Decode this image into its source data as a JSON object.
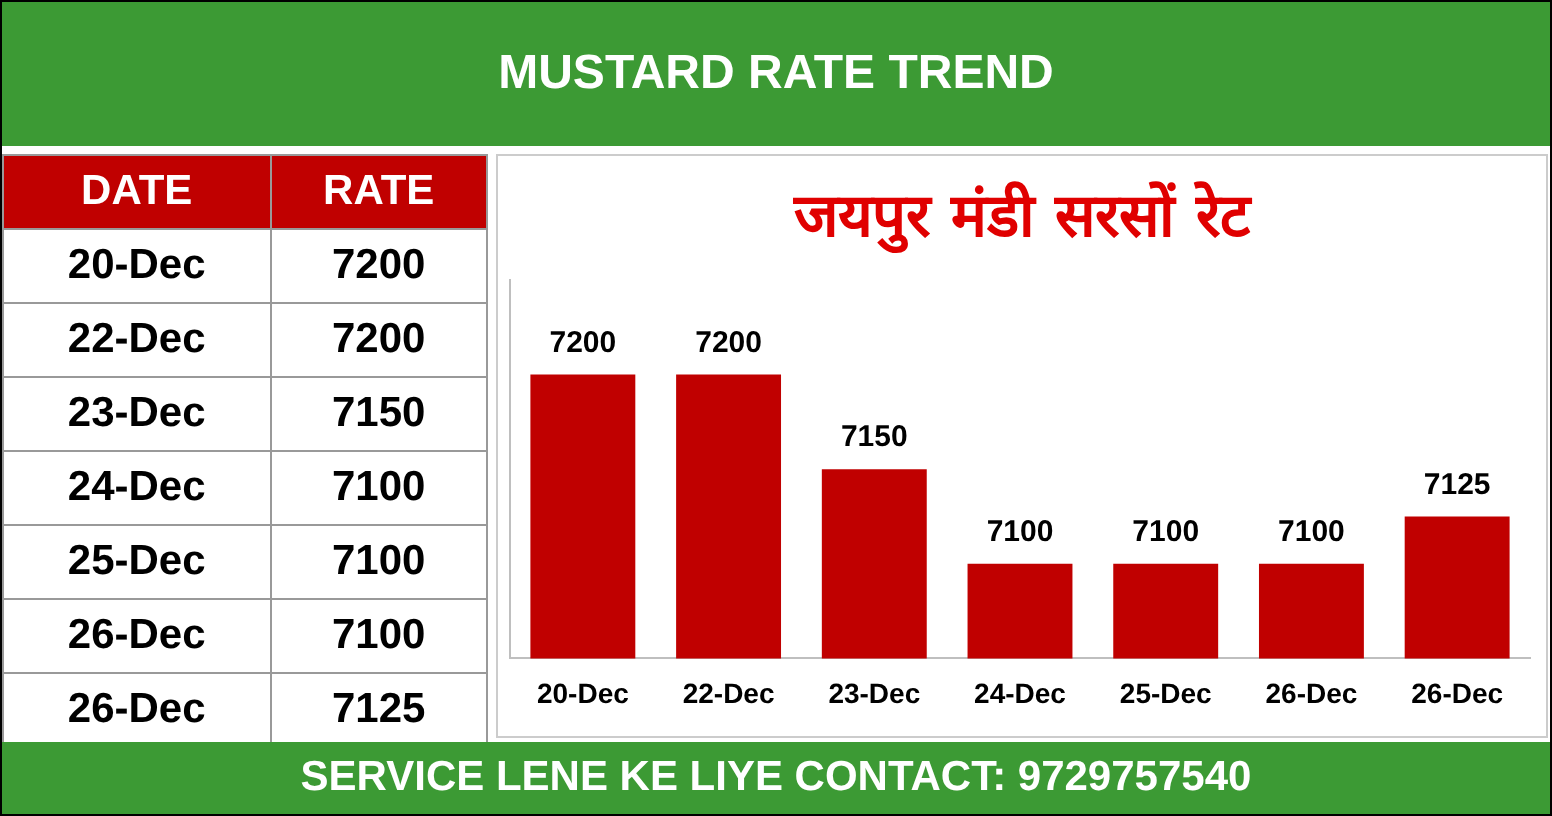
{
  "chart_data": [
    {
      "type": "other",
      "annotations": [
        "DATE",
        "RATE"
      ],
      "categories": [
        "20-Dec",
        "22-Dec",
        "23-Dec",
        "24-Dec",
        "25-Dec",
        "26-Dec",
        "26-Dec"
      ],
      "values": [
        7200,
        7200,
        7150,
        7100,
        7100,
        7100,
        7125
      ],
      "data_labels": true
    },
    {
      "type": "bar",
      "title": "MUSTARD RATE TREND",
      "subtitle": "जयपुर मंडी सरसों रेट",
      "categories": [
        "20-Dec",
        "22-Dec",
        "23-Dec",
        "24-Dec",
        "25-Dec",
        "26-Dec",
        "26-Dec"
      ],
      "values": [
        7200,
        7200,
        7150,
        7100,
        7100,
        7100,
        7125
      ],
      "color": "#c00000",
      "ylim": [
        7050,
        7250
      ],
      "data_labels": true,
      "grid": false,
      "legend": false,
      "tick_labels": "x",
      "annotations": [
        "SERVICE LENE KE LIYE CONTACT: 9729757540"
      ]
    }
  ]
}
